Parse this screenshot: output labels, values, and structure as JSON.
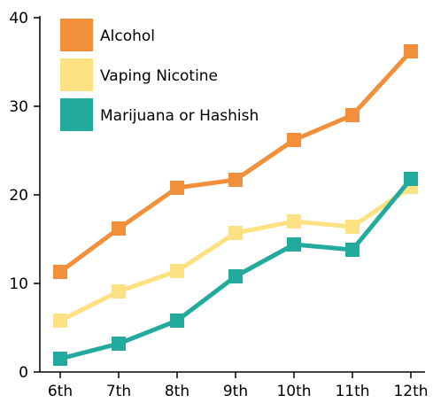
{
  "chart_data": {
    "type": "line",
    "categories": [
      "6th",
      "7th",
      "8th",
      "9th",
      "10th",
      "11th",
      "12th"
    ],
    "series": [
      {
        "name": "Alcohol",
        "color": "#f28f3b",
        "values": [
          11.3,
          16.2,
          20.8,
          21.7,
          26.2,
          29.0,
          36.2
        ]
      },
      {
        "name": "Vaping Nicotine",
        "color": "#fde182",
        "values": [
          5.8,
          9.1,
          11.4,
          15.7,
          17.0,
          16.4,
          20.9
        ]
      },
      {
        "name": "Marijuana or Hashish",
        "color": "#22aa9c",
        "values": [
          1.5,
          3.2,
          5.8,
          10.8,
          14.4,
          13.8,
          21.8
        ]
      }
    ],
    "yticks": [
      "0",
      "10",
      "20",
      "30",
      "40"
    ],
    "ylim": [
      0,
      40
    ],
    "grid": false,
    "legend_position": "top-left",
    "title": "",
    "xlabel": "",
    "ylabel": ""
  }
}
